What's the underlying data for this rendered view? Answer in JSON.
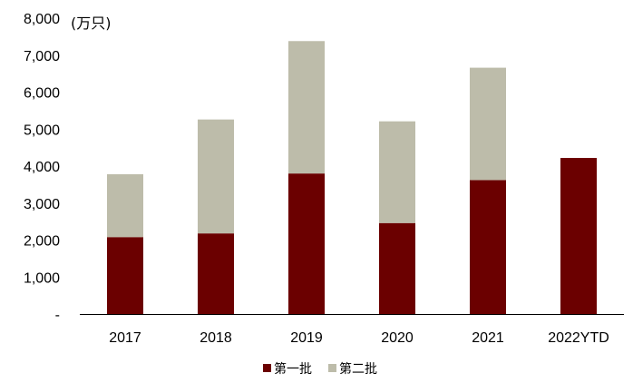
{
  "chart_data": {
    "type": "bar",
    "stacked": true,
    "unit_label": "(万只)",
    "categories": [
      "2017",
      "2018",
      "2019",
      "2020",
      "2021",
      "2022YTD"
    ],
    "series": [
      {
        "name": "第一批",
        "color": "#6b0000",
        "values": [
          2080,
          2180,
          3800,
          2460,
          3620,
          4220
        ]
      },
      {
        "name": "第二批",
        "color": "#bdbcaa",
        "values": [
          1700,
          3080,
          3580,
          2750,
          3040,
          0
        ]
      }
    ],
    "ylim": [
      0,
      8000
    ],
    "yticks": [
      0,
      1000,
      2000,
      3000,
      4000,
      5000,
      6000,
      7000,
      8000
    ],
    "ytick_labels": [
      "-",
      "1,000",
      "2,000",
      "3,000",
      "4,000",
      "5,000",
      "6,000",
      "7,000",
      "8,000"
    ],
    "grid": false,
    "legend_position": "bottom"
  }
}
